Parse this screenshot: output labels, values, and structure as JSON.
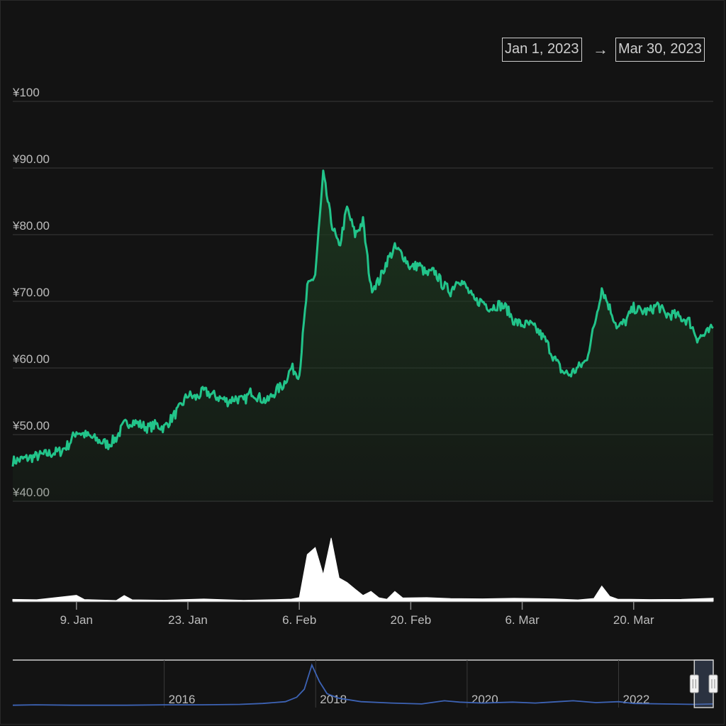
{
  "range_selector": {
    "from": "Jan 1, 2023",
    "arrow": "→",
    "to": "Mar 30, 2023"
  },
  "colors": {
    "background": "#131313",
    "price_line": "#22c48a",
    "price_fill": "#1d3a20",
    "volume": "#ffffff",
    "navigator_line": "#3d63b5",
    "gridline": "#3a3a3a",
    "axis_text": "#bdbdbd"
  },
  "chart_data": {
    "type": "line",
    "title": "",
    "y_axis": {
      "min": 40,
      "max": 100,
      "ticks": [
        {
          "value": 40,
          "label": "¥40.00"
        },
        {
          "value": 50,
          "label": "¥50.00"
        },
        {
          "value": 60,
          "label": "¥60.00"
        },
        {
          "value": 70,
          "label": "¥70.00"
        },
        {
          "value": 80,
          "label": "¥80.00"
        },
        {
          "value": 90,
          "label": "¥90.00"
        },
        {
          "value": 100,
          "label": "¥100"
        }
      ]
    },
    "x_axis": {
      "min": "2023-01-01",
      "max": "2023-03-30",
      "ticks": [
        {
          "date": "2023-01-09",
          "label": "9. Jan"
        },
        {
          "date": "2023-01-23",
          "label": "23. Jan"
        },
        {
          "date": "2023-02-06",
          "label": "6. Feb"
        },
        {
          "date": "2023-02-20",
          "label": "20. Feb"
        },
        {
          "date": "2023-03-06",
          "label": "6. Mar"
        },
        {
          "date": "2023-03-20",
          "label": "20. Mar"
        }
      ]
    },
    "price_series": [
      [
        "2023-01-01",
        46
      ],
      [
        "2023-01-03",
        46.5
      ],
      [
        "2023-01-05",
        47
      ],
      [
        "2023-01-07",
        47.5
      ],
      [
        "2023-01-08",
        48.5
      ],
      [
        "2023-01-09",
        50.5
      ],
      [
        "2023-01-10",
        50
      ],
      [
        "2023-01-11",
        49.5
      ],
      [
        "2023-01-12",
        49
      ],
      [
        "2023-01-13",
        48.5
      ],
      [
        "2023-01-14",
        49.5
      ],
      [
        "2023-01-15",
        51.5
      ],
      [
        "2023-01-16",
        52
      ],
      [
        "2023-01-17",
        51.5
      ],
      [
        "2023-01-18",
        51
      ],
      [
        "2023-01-19",
        51.5
      ],
      [
        "2023-01-20",
        51
      ],
      [
        "2023-01-21",
        52.5
      ],
      [
        "2023-01-22",
        54
      ],
      [
        "2023-01-23",
        56
      ],
      [
        "2023-01-24",
        55.5
      ],
      [
        "2023-01-25",
        56.5
      ],
      [
        "2023-01-26",
        56
      ],
      [
        "2023-01-27",
        55.5
      ],
      [
        "2023-01-28",
        55
      ],
      [
        "2023-01-29",
        55.5
      ],
      [
        "2023-01-30",
        55
      ],
      [
        "2023-01-31",
        56.5
      ],
      [
        "2023-02-01",
        55.5
      ],
      [
        "2023-02-02",
        55
      ],
      [
        "2023-02-03",
        56.5
      ],
      [
        "2023-02-04",
        57.5
      ],
      [
        "2023-02-05",
        60
      ],
      [
        "2023-02-06",
        59
      ],
      [
        "2023-02-07",
        72
      ],
      [
        "2023-02-08",
        74
      ],
      [
        "2023-02-09",
        89
      ],
      [
        "2023-02-10",
        82
      ],
      [
        "2023-02-11",
        78
      ],
      [
        "2023-02-12",
        84
      ],
      [
        "2023-02-13",
        80
      ],
      [
        "2023-02-14",
        82
      ],
      [
        "2023-02-15",
        72
      ],
      [
        "2023-02-16",
        73
      ],
      [
        "2023-02-17",
        76
      ],
      [
        "2023-02-18",
        78
      ],
      [
        "2023-02-19",
        77
      ],
      [
        "2023-02-20",
        75
      ],
      [
        "2023-02-21",
        75.5
      ],
      [
        "2023-02-22",
        74
      ],
      [
        "2023-02-23",
        74.5
      ],
      [
        "2023-02-24",
        72.5
      ],
      [
        "2023-02-25",
        71.5
      ],
      [
        "2023-02-26",
        73.5
      ],
      [
        "2023-02-27",
        72
      ],
      [
        "2023-02-28",
        70
      ],
      [
        "2023-03-01",
        70
      ],
      [
        "2023-03-02",
        69
      ],
      [
        "2023-03-03",
        69.5
      ],
      [
        "2023-03-04",
        69
      ],
      [
        "2023-03-05",
        67
      ],
      [
        "2023-03-06",
        66.5
      ],
      [
        "2023-03-07",
        66.5
      ],
      [
        "2023-03-08",
        65.5
      ],
      [
        "2023-03-09",
        64
      ],
      [
        "2023-03-10",
        61.5
      ],
      [
        "2023-03-11",
        59.5
      ],
      [
        "2023-03-12",
        59
      ],
      [
        "2023-03-13",
        60
      ],
      [
        "2023-03-14",
        61
      ],
      [
        "2023-03-15",
        66
      ],
      [
        "2023-03-16",
        72
      ],
      [
        "2023-03-17",
        69
      ],
      [
        "2023-03-18",
        66
      ],
      [
        "2023-03-19",
        67
      ],
      [
        "2023-03-20",
        69
      ],
      [
        "2023-03-21",
        68.5
      ],
      [
        "2023-03-22",
        68.5
      ],
      [
        "2023-03-23",
        69.5
      ],
      [
        "2023-03-24",
        68
      ],
      [
        "2023-03-25",
        68
      ],
      [
        "2023-03-26",
        67.5
      ],
      [
        "2023-03-27",
        67
      ],
      [
        "2023-03-28",
        64.5
      ],
      [
        "2023-03-29",
        65
      ],
      [
        "2023-03-30",
        66
      ]
    ],
    "volume_max": 100,
    "volume_series": [
      [
        "2023-01-01",
        3
      ],
      [
        "2023-01-04",
        2
      ],
      [
        "2023-01-09",
        10
      ],
      [
        "2023-01-10",
        3
      ],
      [
        "2023-01-14",
        2
      ],
      [
        "2023-01-15",
        8
      ],
      [
        "2023-01-16",
        3
      ],
      [
        "2023-01-20",
        2
      ],
      [
        "2023-01-25",
        3
      ],
      [
        "2023-01-30",
        2
      ],
      [
        "2023-02-03",
        3
      ],
      [
        "2023-02-05",
        4
      ],
      [
        "2023-02-06",
        5
      ],
      [
        "2023-02-07",
        72
      ],
      [
        "2023-02-08",
        82
      ],
      [
        "2023-02-09",
        40
      ],
      [
        "2023-02-10",
        98
      ],
      [
        "2023-02-11",
        35
      ],
      [
        "2023-02-12",
        28
      ],
      [
        "2023-02-13",
        18
      ],
      [
        "2023-02-14",
        8
      ],
      [
        "2023-02-15",
        16
      ],
      [
        "2023-02-16",
        6
      ],
      [
        "2023-02-17",
        4
      ],
      [
        "2023-02-18",
        14
      ],
      [
        "2023-02-19",
        5
      ],
      [
        "2023-02-22",
        6
      ],
      [
        "2023-02-25",
        4
      ],
      [
        "2023-03-01",
        3
      ],
      [
        "2023-03-05",
        4
      ],
      [
        "2023-03-10",
        3
      ],
      [
        "2023-03-13",
        3
      ],
      [
        "2023-03-15",
        5
      ],
      [
        "2023-03-16",
        23
      ],
      [
        "2023-03-17",
        7
      ],
      [
        "2023-03-18",
        4
      ],
      [
        "2023-03-22",
        3
      ],
      [
        "2023-03-26",
        3
      ],
      [
        "2023-03-30",
        4
      ]
    ],
    "navigator": {
      "x_min": 2014.0,
      "x_max": 2023.25,
      "y_max": 100,
      "labels": [
        {
          "year": 2016,
          "label": "2016"
        },
        {
          "year": 2018,
          "label": "2018"
        },
        {
          "year": 2020,
          "label": "2020"
        },
        {
          "year": 2022,
          "label": "2022"
        }
      ],
      "selection": {
        "from": 2023.0,
        "to": 2023.25
      },
      "series": [
        [
          2014.0,
          2
        ],
        [
          2014.3,
          3
        ],
        [
          2014.8,
          2
        ],
        [
          2015.5,
          2
        ],
        [
          2016.0,
          3
        ],
        [
          2016.5,
          3
        ],
        [
          2017.0,
          4
        ],
        [
          2017.3,
          6
        ],
        [
          2017.6,
          10
        ],
        [
          2017.75,
          20
        ],
        [
          2017.85,
          38
        ],
        [
          2017.95,
          92
        ],
        [
          2018.05,
          55
        ],
        [
          2018.15,
          28
        ],
        [
          2018.3,
          18
        ],
        [
          2018.6,
          10
        ],
        [
          2019.0,
          7
        ],
        [
          2019.4,
          5
        ],
        [
          2019.7,
          12
        ],
        [
          2019.9,
          9
        ],
        [
          2020.2,
          7
        ],
        [
          2020.6,
          9
        ],
        [
          2020.9,
          7
        ],
        [
          2021.2,
          10
        ],
        [
          2021.4,
          12
        ],
        [
          2021.7,
          8
        ],
        [
          2022.0,
          10
        ],
        [
          2022.2,
          6
        ],
        [
          2022.6,
          5
        ],
        [
          2023.0,
          4
        ],
        [
          2023.25,
          5
        ]
      ]
    }
  }
}
